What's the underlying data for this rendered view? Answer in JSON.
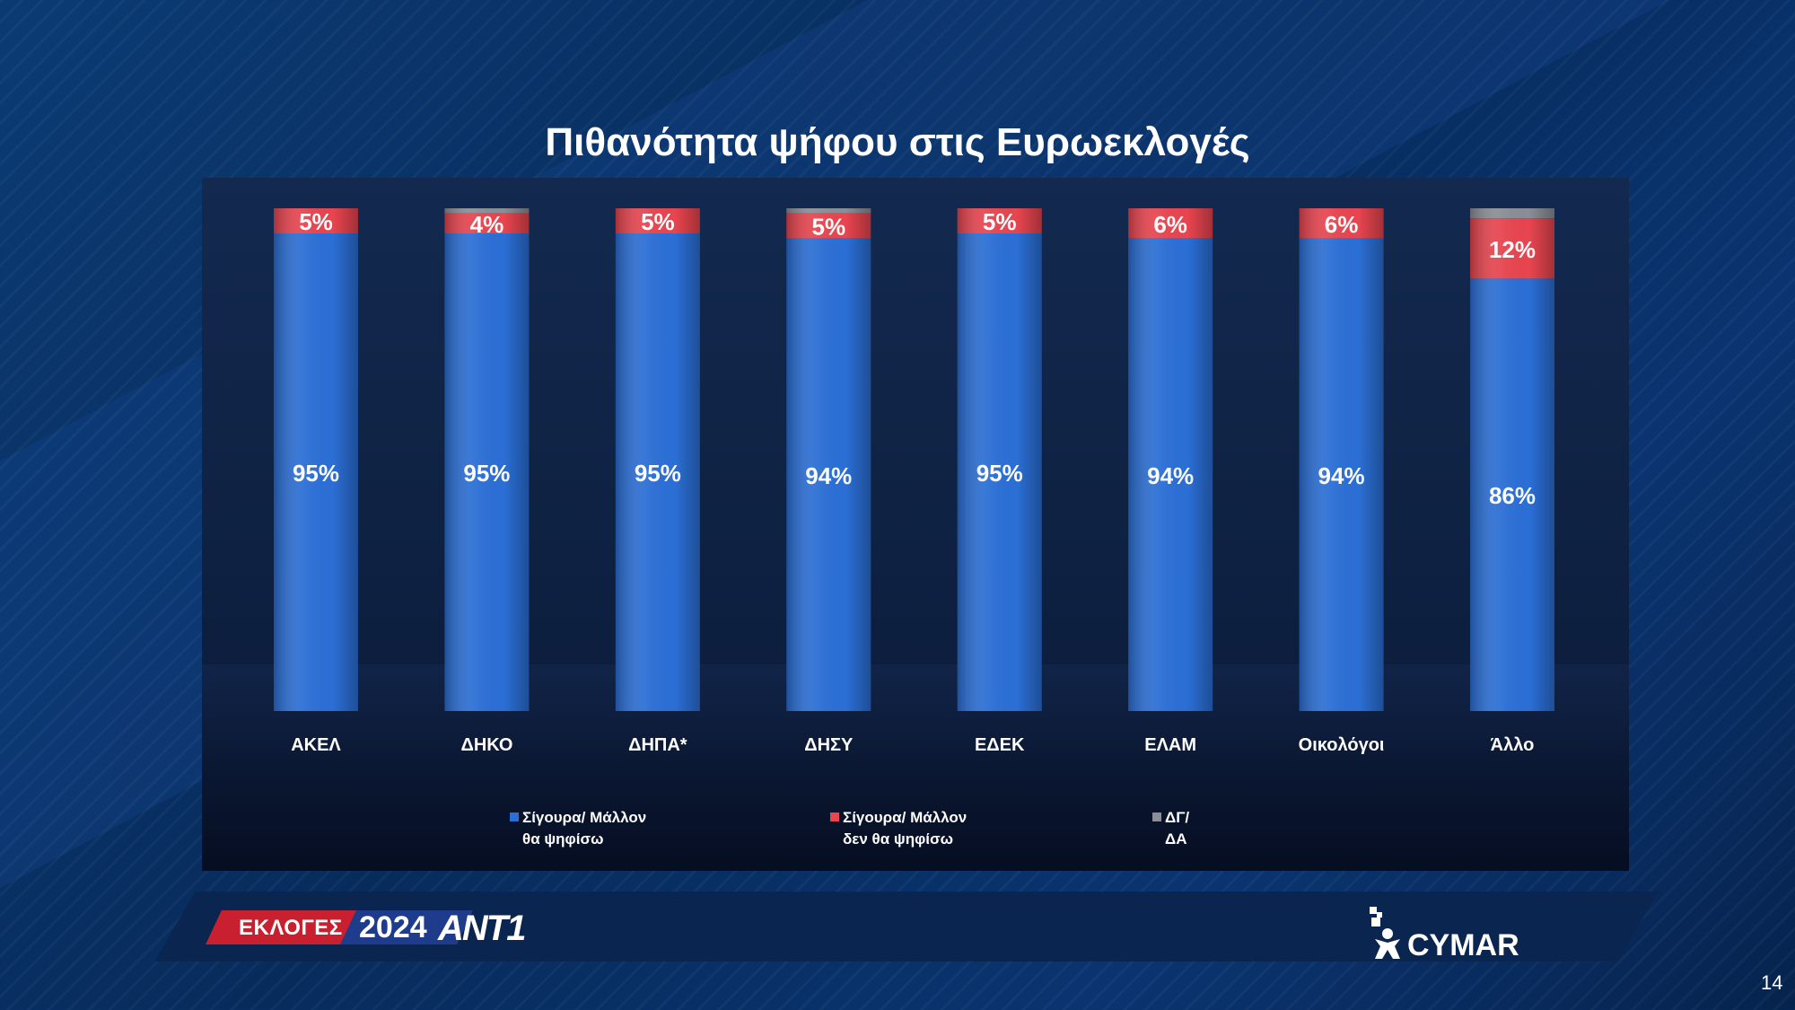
{
  "title": "Πιθανότητα ψήφου στις Ευρωεκλογές",
  "chart_data": {
    "type": "bar",
    "stacked": true,
    "categories": [
      "ΑΚΕΛ",
      "ΔΗΚΟ",
      "ΔΗΠΑ*",
      "ΔΗΣΥ",
      "ΕΔΕΚ",
      "ΕΛΑΜ",
      "Οικολόγοι",
      "Άλλο"
    ],
    "series": [
      {
        "name": "Σίγουρα/ Μάλλον θα ψηφίσω",
        "color": "#2b6fd6",
        "values": [
          95,
          95,
          95,
          94,
          95,
          94,
          94,
          86
        ],
        "labels": [
          "95%",
          "95%",
          "95%",
          "94%",
          "95%",
          "94%",
          "94%",
          "86%"
        ]
      },
      {
        "name": "Σίγουρα/ Μάλλον δεν θα ψηφίσω",
        "color": "#e8454f",
        "values": [
          5,
          4,
          5,
          5,
          5,
          6,
          6,
          12
        ],
        "labels": [
          "5%",
          "4%",
          "5%",
          "5%",
          "5%",
          "6%",
          "6%",
          "12%"
        ]
      },
      {
        "name": "ΔΓ/ ΔΑ",
        "color": "#8a8e96",
        "values": [
          0,
          1,
          0,
          1,
          0,
          0,
          0,
          2
        ],
        "labels": [
          "",
          "",
          "",
          "",
          "",
          "",
          "",
          ""
        ]
      }
    ],
    "legend": [
      {
        "line1": "Σίγουρα/ Μάλλον",
        "line2": "θα ψηφίσω",
        "color": "#2b6fd6"
      },
      {
        "line1": "Σίγουρα/ Μάλλον",
        "line2": "δεν θα ψηφίσω",
        "color": "#e8454f"
      },
      {
        "line1": "ΔΓ/",
        "line2": "ΔΑ",
        "color": "#8a8e96"
      }
    ],
    "legend_position": "bottom",
    "ylim": [
      0,
      100
    ],
    "grid": false
  },
  "footer": {
    "elections_label": "ΕΚΛΟΓΕΣ",
    "year": "2024",
    "channel": "ANT1",
    "pollster": "CYMAR",
    "page_number": "14"
  }
}
